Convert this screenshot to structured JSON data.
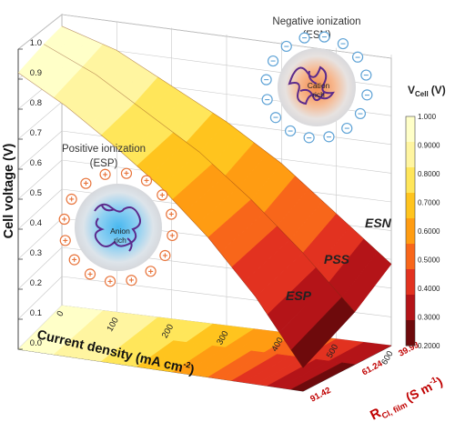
{
  "chart_data": {
    "type": "surface3d",
    "xlabel": "Current density (mA cm",
    "xlabel_sup": "-2",
    "xlabel_close": ")",
    "x_ticks": [
      "0",
      "100",
      "200",
      "300",
      "400",
      "500",
      "600"
    ],
    "ylabel": "Cell voltage (V)",
    "y_ticks": [
      "0.0",
      "0.1",
      "0.2",
      "0.3",
      "0.4",
      "0.5",
      "0.6",
      "0.7",
      "0.8",
      "0.9",
      "1.0"
    ],
    "ylim": [
      0,
      1.0
    ],
    "zlabel": "R",
    "zlabel_sub": "Cl, film",
    "zlabel_unit": "(S m",
    "zlabel_unit_sup": "-1",
    "zlabel_unit_close": ")",
    "z_ticks": [
      "39.93",
      "61.24",
      "91.42"
    ],
    "series": [
      {
        "name": "ESN",
        "r_cl_film": 39.93,
        "current_density": [
          0,
          100,
          200,
          300,
          400,
          500,
          600
        ],
        "voltage": [
          0.96,
          0.9,
          0.8,
          0.7,
          0.58,
          0.43,
          0.28
        ]
      },
      {
        "name": "PSS",
        "r_cl_film": 61.24,
        "current_density": [
          0,
          100,
          200,
          300,
          400,
          500,
          600
        ],
        "voltage": [
          0.96,
          0.88,
          0.77,
          0.66,
          0.52,
          0.36,
          0.18
        ]
      },
      {
        "name": "ESP",
        "r_cl_film": 91.42,
        "current_density": [
          0,
          100,
          200,
          300,
          400,
          500,
          600
        ],
        "voltage": [
          0.95,
          0.86,
          0.75,
          0.63,
          0.48,
          0.3,
          0.08
        ]
      }
    ],
    "colorbar": {
      "title": "V",
      "title_sub": "Cell",
      "title_unit": "(V)",
      "ticks": [
        "1.000",
        "0.9000",
        "0.8000",
        "0.7000",
        "0.6000",
        "0.5000",
        "0.4000",
        "0.3000",
        "0.2000"
      ],
      "levels": [
        {
          "max": 1.0,
          "color": "#ffffc8"
        },
        {
          "max": 0.9,
          "color": "#fff5a0"
        },
        {
          "max": 0.8,
          "color": "#ffe65a"
        },
        {
          "max": 0.7,
          "color": "#ffc41e"
        },
        {
          "max": 0.6,
          "color": "#ff9c12"
        },
        {
          "max": 0.5,
          "color": "#f8661a"
        },
        {
          "max": 0.4,
          "color": "#e23220"
        },
        {
          "max": 0.3,
          "color": "#b41418"
        },
        {
          "max": 0.2,
          "color": "#6e0a0c"
        }
      ]
    },
    "grid": true
  },
  "annotations": {
    "esn_title": "Negative ionization",
    "esn_abbr": "(ESN)",
    "esn_inner_1": "Cation",
    "esn_inner_2": "rich",
    "esp_title": "Positive ionization",
    "esp_abbr": "(ESP)",
    "esp_inner_1": "Anion",
    "esp_inner_2": "rich",
    "minus": "−",
    "plus": "+"
  },
  "colors": {
    "red_axis": "#c00000",
    "minus_ring": "#5fa3d6",
    "plus_ring": "#e8743b",
    "polymer": "#5b2a8c"
  }
}
